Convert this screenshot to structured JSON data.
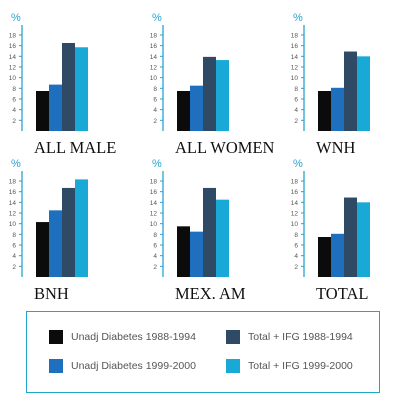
{
  "colors": {
    "unadj_1988": "#0b0b0b",
    "unadj_1999": "#1f6fbf",
    "total_1988": "#2e4a64",
    "total_1999": "#19a9d6",
    "axis": "#29a3cf",
    "tick_text": "#555555",
    "title_text": "#111111"
  },
  "chart_data": [
    {
      "type": "bar",
      "title": "ALL MALE",
      "ylabel": "%",
      "ylim": [
        0,
        18
      ],
      "yticks": [
        2,
        4,
        6,
        8,
        10,
        12,
        14,
        16,
        18
      ],
      "categories": [
        "Unadj Diabetes 1988-1994",
        "Unadj Diabetes 1999-2000",
        "Total + IFG 1988-1994",
        "Total + IFG 1999-2000"
      ],
      "values": [
        7.5,
        8.7,
        16.5,
        15.7
      ]
    },
    {
      "type": "bar",
      "title": "ALL WOMEN",
      "ylabel": "%",
      "ylim": [
        0,
        18
      ],
      "yticks": [
        2,
        4,
        6,
        8,
        10,
        12,
        14,
        16,
        18
      ],
      "categories": [
        "Unadj Diabetes 1988-1994",
        "Unadj Diabetes 1999-2000",
        "Total + IFG 1988-1994",
        "Total + IFG 1999-2000"
      ],
      "values": [
        7.5,
        8.5,
        13.9,
        13.3
      ]
    },
    {
      "type": "bar",
      "title": "WNH",
      "ylabel": "%",
      "ylim": [
        0,
        18
      ],
      "yticks": [
        2,
        4,
        6,
        8,
        10,
        12,
        14,
        16,
        18
      ],
      "categories": [
        "Unadj Diabetes 1988-1994",
        "Unadj Diabetes 1999-2000",
        "Total + IFG 1988-1994",
        "Total + IFG 1999-2000"
      ],
      "values": [
        7.5,
        8.1,
        14.9,
        14.0
      ]
    },
    {
      "type": "bar",
      "title": "BNH",
      "ylabel": "%",
      "ylim": [
        0,
        18
      ],
      "yticks": [
        2,
        4,
        6,
        8,
        10,
        12,
        14,
        16,
        18
      ],
      "categories": [
        "Unadj Diabetes 1988-1994",
        "Unadj Diabetes 1999-2000",
        "Total + IFG 1988-1994",
        "Total + IFG 1999-2000"
      ],
      "values": [
        10.3,
        12.5,
        16.7,
        18.3
      ]
    },
    {
      "type": "bar",
      "title": "MEX. AM",
      "ylabel": "%",
      "ylim": [
        0,
        18
      ],
      "yticks": [
        2,
        4,
        6,
        8,
        10,
        12,
        14,
        16,
        18
      ],
      "categories": [
        "Unadj Diabetes 1988-1994",
        "Unadj Diabetes 1999-2000",
        "Total + IFG 1988-1994",
        "Total + IFG 1999-2000"
      ],
      "values": [
        9.5,
        8.5,
        16.7,
        14.5
      ]
    },
    {
      "type": "bar",
      "title": "TOTAL",
      "ylabel": "%",
      "ylim": [
        0,
        18
      ],
      "yticks": [
        2,
        4,
        6,
        8,
        10,
        12,
        14,
        16,
        18
      ],
      "categories": [
        "Unadj Diabetes 1988-1994",
        "Unadj Diabetes 1999-2000",
        "Total + IFG 1988-1994",
        "Total + IFG 1999-2000"
      ],
      "values": [
        7.5,
        8.1,
        14.9,
        14.0
      ]
    }
  ],
  "legend": [
    {
      "label": "Unadj Diabetes 1988-1994",
      "color_key": "unadj_1988"
    },
    {
      "label": "Total + IFG 1988-1994",
      "color_key": "total_1988"
    },
    {
      "label": "Unadj Diabetes 1999-2000",
      "color_key": "unadj_1999"
    },
    {
      "label": "Total + IFG 1999-2000",
      "color_key": "total_1999"
    }
  ]
}
